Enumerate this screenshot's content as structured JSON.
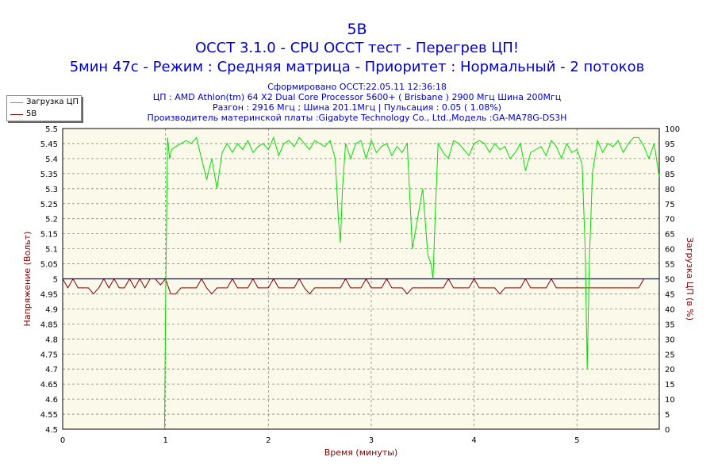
{
  "header": {
    "line1": "5В",
    "line2": "OCCT 3.1.0 - CPU OCCT тест - Перегрев ЦП!",
    "line3": "5мин 47с - Режим : Средняя матрица - Приоритет : Нормальный - 2 потоков",
    "info1": "Сформировано OCCT:22.05.11 12:36:18",
    "info2": "ЦП : AMD Athlon(tm) 64 X2 Dual Core Processor 5600+ ( Brisbane ) 2900 Мгц Шина 200Мгц",
    "info3": "Разгон : 2916 Мгц ; Шина 201.1Мгц | Пульсация : 0.05 ( 1.08%)",
    "info4": "Производитель материнской платы :Gigabyte Technology Co., Ltd.,Модель :GA-MA78G-DS3H"
  },
  "legend": {
    "items": [
      {
        "label": "Загрузка ЦП",
        "color": "#00e000"
      },
      {
        "label": "5В",
        "color": "#800000"
      }
    ]
  },
  "colors": {
    "plot_bg": "#fbf9e9",
    "grid": "#8a8a7a",
    "cpu_line": "#00e000",
    "voltage_line": "#800000",
    "reference_line": "#0000cc",
    "axis_label": "#800000",
    "title": "#0000cc"
  },
  "chart_data": {
    "type": "line",
    "xlabel": "Время (минуты)",
    "ylabel": "Напряжение (Вольт)",
    "y2label": "Загрузка ЦП (в %)",
    "xlim": [
      0,
      5.8
    ],
    "ylim": [
      4.5,
      5.5
    ],
    "y2lim": [
      0,
      100
    ],
    "x_ticks": [
      "0",
      "1",
      "2",
      "3",
      "4",
      "5"
    ],
    "y_ticks": [
      "4.5",
      "4.55",
      "4.6",
      "4.65",
      "4.7",
      "4.75",
      "4.8",
      "4.85",
      "4.9",
      "4.95",
      "5",
      "5.05",
      "5.1",
      "5.15",
      "5.2",
      "5.25",
      "5.3",
      "5.35",
      "5.4",
      "5.45",
      "5.5"
    ],
    "y2_ticks": [
      "0",
      "5",
      "10",
      "15",
      "20",
      "25",
      "30",
      "35",
      "40",
      "45",
      "50",
      "55",
      "60",
      "65",
      "70",
      "75",
      "80",
      "85",
      "90",
      "95",
      "100"
    ],
    "grid": true,
    "legend_position": "top-left",
    "reference_line": {
      "y": 5.0
    },
    "series": [
      {
        "name": "Загрузка ЦП",
        "axis": "right",
        "x": [
          0.99,
          1.0,
          1.02,
          1.04,
          1.06,
          1.1,
          1.15,
          1.2,
          1.25,
          1.3,
          1.35,
          1.4,
          1.45,
          1.5,
          1.55,
          1.6,
          1.65,
          1.7,
          1.75,
          1.8,
          1.85,
          1.9,
          1.95,
          2.0,
          2.05,
          2.1,
          2.15,
          2.2,
          2.25,
          2.3,
          2.35,
          2.4,
          2.45,
          2.5,
          2.55,
          2.6,
          2.65,
          2.68,
          2.7,
          2.72,
          2.75,
          2.8,
          2.85,
          2.9,
          2.95,
          3.0,
          3.05,
          3.1,
          3.15,
          3.2,
          3.25,
          3.3,
          3.35,
          3.4,
          3.45,
          3.5,
          3.55,
          3.58,
          3.6,
          3.62,
          3.65,
          3.7,
          3.75,
          3.8,
          3.85,
          3.9,
          3.95,
          4.0,
          4.05,
          4.1,
          4.15,
          4.2,
          4.25,
          4.3,
          4.35,
          4.4,
          4.45,
          4.5,
          4.55,
          4.6,
          4.65,
          4.7,
          4.75,
          4.8,
          4.85,
          4.9,
          4.95,
          5.0,
          5.05,
          5.08,
          5.1,
          5.12,
          5.15,
          5.2,
          5.25,
          5.3,
          5.35,
          5.4,
          5.45,
          5.5,
          5.55,
          5.6,
          5.65,
          5.7,
          5.75,
          5.8
        ],
        "values": [
          0,
          40,
          97,
          90,
          93,
          94,
          95,
          96,
          95,
          97,
          90,
          83,
          90,
          80,
          92,
          95,
          92,
          95,
          93,
          96,
          92,
          94,
          95,
          93,
          97,
          91,
          95,
          96,
          94,
          97,
          95,
          93,
          96,
          95,
          94,
          96,
          90,
          70,
          62,
          80,
          95,
          90,
          95,
          96,
          90,
          96,
          92,
          94,
          95,
          91,
          94,
          92,
          95,
          60,
          70,
          80,
          58,
          55,
          50,
          70,
          95,
          92,
          90,
          96,
          95,
          93,
          91,
          95,
          96,
          95,
          92,
          95,
          93,
          94,
          90,
          92,
          95,
          86,
          92,
          93,
          94,
          91,
          96,
          94,
          90,
          95,
          92,
          93,
          88,
          60,
          20,
          55,
          85,
          96,
          92,
          95,
          94,
          96,
          92,
          95,
          97,
          97,
          94,
          90,
          95,
          84
        ]
      },
      {
        "name": "5В",
        "axis": "left",
        "x": [
          0.0,
          0.05,
          0.1,
          0.15,
          0.2,
          0.25,
          0.3,
          0.35,
          0.4,
          0.45,
          0.5,
          0.55,
          0.6,
          0.65,
          0.7,
          0.75,
          0.8,
          0.85,
          0.9,
          0.95,
          1.0,
          1.05,
          1.1,
          1.15,
          1.2,
          1.25,
          1.3,
          1.35,
          1.4,
          1.45,
          1.5,
          1.55,
          1.6,
          1.65,
          1.7,
          1.75,
          1.8,
          1.85,
          1.9,
          1.95,
          2.0,
          2.05,
          2.1,
          2.15,
          2.2,
          2.25,
          2.3,
          2.35,
          2.4,
          2.45,
          2.5,
          2.55,
          2.6,
          2.65,
          2.7,
          2.75,
          2.8,
          2.85,
          2.9,
          2.95,
          3.0,
          3.05,
          3.1,
          3.15,
          3.2,
          3.25,
          3.3,
          3.35,
          3.4,
          3.45,
          3.5,
          3.55,
          3.6,
          3.65,
          3.7,
          3.75,
          3.8,
          3.85,
          3.9,
          3.95,
          4.0,
          4.05,
          4.1,
          4.15,
          4.2,
          4.25,
          4.3,
          4.35,
          4.4,
          4.45,
          4.5,
          4.55,
          4.6,
          4.65,
          4.7,
          4.75,
          4.8,
          4.85,
          4.9,
          4.95,
          5.0,
          5.05,
          5.1,
          5.15,
          5.2,
          5.25,
          5.3,
          5.35,
          5.4,
          5.45,
          5.5,
          5.55,
          5.6,
          5.65,
          5.7,
          5.75,
          5.8
        ],
        "values": [
          5.0,
          4.97,
          5.0,
          4.97,
          4.97,
          4.97,
          4.95,
          4.97,
          5.0,
          4.97,
          5.0,
          4.97,
          4.97,
          5.0,
          4.97,
          5.0,
          4.97,
          5.0,
          5.0,
          4.98,
          5.0,
          4.95,
          4.95,
          4.97,
          4.97,
          4.97,
          4.97,
          5.0,
          4.97,
          4.95,
          4.97,
          4.97,
          4.97,
          5.0,
          4.97,
          4.97,
          4.97,
          5.0,
          4.97,
          4.97,
          4.97,
          5.0,
          4.97,
          4.97,
          4.97,
          4.97,
          5.0,
          4.97,
          4.95,
          4.97,
          4.97,
          4.97,
          4.97,
          4.97,
          4.97,
          5.0,
          4.97,
          4.97,
          4.97,
          5.0,
          4.97,
          4.97,
          4.97,
          5.0,
          4.97,
          4.97,
          4.97,
          4.95,
          4.97,
          4.97,
          4.97,
          4.97,
          4.97,
          4.97,
          4.97,
          5.0,
          4.97,
          4.97,
          4.97,
          4.97,
          5.0,
          4.97,
          4.97,
          4.97,
          4.97,
          4.95,
          4.97,
          4.97,
          4.97,
          4.97,
          5.0,
          4.97,
          4.97,
          4.97,
          4.97,
          5.0,
          4.97,
          4.97,
          4.97,
          4.97,
          4.97,
          4.97,
          4.97,
          4.97,
          4.97,
          4.97,
          4.97,
          4.97,
          4.97,
          4.97,
          4.97,
          4.97,
          4.97,
          5.0,
          5.0,
          5.0,
          5.0
        ]
      }
    ]
  }
}
